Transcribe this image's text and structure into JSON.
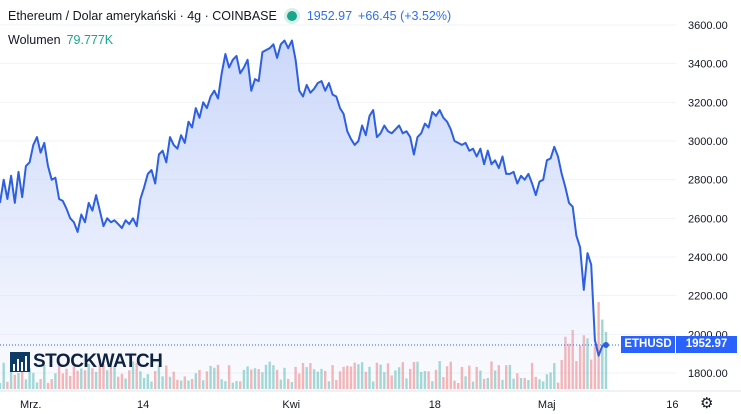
{
  "legend": {
    "symbol": "Ethereum / Dolar amerykański · 4g · COINBASE",
    "price": "1952.97",
    "change": "+66.45 (+3.52%)",
    "status_color": "#1aa68c"
  },
  "volume": {
    "label": "Wolumen",
    "value": "79.777K"
  },
  "price_tag": {
    "ticker": "ETHUSD",
    "value": "1952.97",
    "color": "#2962ff"
  },
  "logo": {
    "text": "STOCKWATCH"
  },
  "settings_icon": "gear-icon",
  "chart_data": {
    "type": "area",
    "title": "",
    "xlabel": "",
    "ylabel": "",
    "ylim": [
      1740,
      3680
    ],
    "y_ticks": [
      1800,
      2000,
      2200,
      2400,
      2600,
      2800,
      3000,
      3200,
      3400,
      3600
    ],
    "y_tick_labels": [
      "1800.00",
      "2000.00",
      "2200.00",
      "2400.00",
      "2600.00",
      "2800.00",
      "3000.00",
      "3200.00",
      "3400.00",
      "3600.00"
    ],
    "x_ticks": [
      {
        "label": "Mrz.",
        "t": 0.0415
      },
      {
        "label": "14",
        "t": 0.1932
      },
      {
        "label": "Kwi",
        "t": 0.3931
      },
      {
        "label": "18",
        "t": 0.5868
      },
      {
        "label": "Maj",
        "t": 0.7379
      },
      {
        "label": "16",
        "t": 0.9074
      }
    ],
    "line_color": "#2e5fe0",
    "fill_color": "#dce4fb",
    "series": [
      {
        "values": [
          2680,
          2800,
          2700,
          2820,
          2680,
          2840,
          2710,
          2870,
          2890,
          2980,
          3020,
          2940,
          2990,
          2870,
          2800,
          2810,
          2700,
          2690,
          2650,
          2600,
          2580,
          2530,
          2620,
          2580,
          2680,
          2640,
          2720,
          2640,
          2560,
          2600,
          2580,
          2590,
          2570,
          2550,
          2590,
          2570,
          2600,
          2560,
          2700,
          2760,
          2830,
          2850,
          2780,
          2930,
          2950,
          2890,
          3020,
          2980,
          2960,
          3030,
          2990,
          3100,
          3070,
          3170,
          3120,
          3200,
          3170,
          3230,
          3260,
          3220,
          3350,
          3450,
          3380,
          3420,
          3440,
          3350,
          3380,
          3420,
          3260,
          3320,
          3310,
          3460,
          3470,
          3480,
          3500,
          3430,
          3500,
          3520,
          3480,
          3520,
          3420,
          3260,
          3230,
          3290,
          3250,
          3270,
          3300,
          3310,
          3260,
          3300,
          3240,
          3230,
          3170,
          3140,
          3050,
          3010,
          2980,
          3000,
          3080,
          3030,
          3130,
          3160,
          3020,
          3040,
          3080,
          3050,
          3040,
          3060,
          3080,
          3040,
          3050,
          3020,
          2930,
          3020,
          3040,
          3090,
          3070,
          3150,
          3130,
          3160,
          3120,
          3100,
          3060,
          3000,
          2990,
          2980,
          2990,
          2950,
          2960,
          2920,
          2960,
          2880,
          2950,
          2880,
          2900,
          2860,
          2920,
          2830,
          2830,
          2840,
          2780,
          2820,
          2800,
          2830,
          2780,
          2720,
          2790,
          2800,
          2900,
          2910,
          2970,
          2920,
          2830,
          2760,
          2680,
          2660,
          2510,
          2450,
          2230,
          2420,
          2360,
          1970,
          1890,
          1940,
          1952.97
        ]
      }
    ]
  }
}
